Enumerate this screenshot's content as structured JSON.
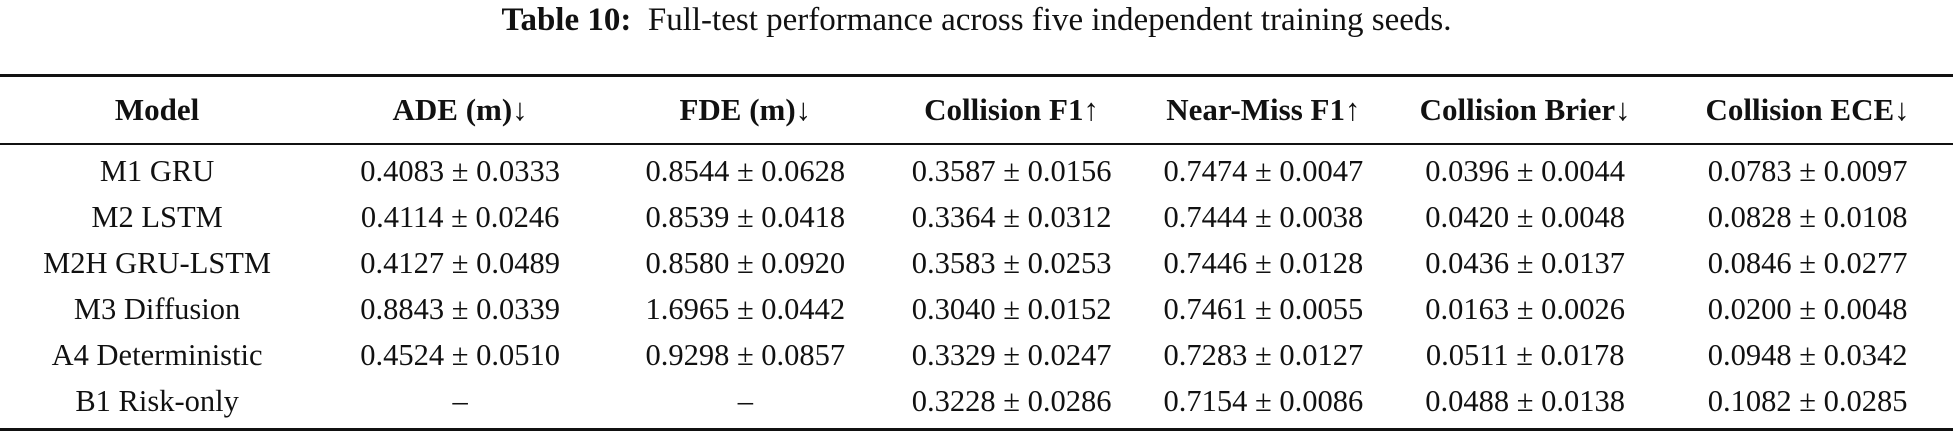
{
  "caption": {
    "label": "Table 10:",
    "text": "Full-test performance across five independent training seeds."
  },
  "table": {
    "headers": [
      "Model",
      "ADE (m)↓",
      "FDE (m)↓",
      "Collision F1↑",
      "Near-Miss F1↑",
      "Collision Brier↓",
      "Collision ECE↓"
    ],
    "rows": [
      [
        "M1 GRU",
        "0.4083 ± 0.0333",
        "0.8544 ± 0.0628",
        "0.3587 ± 0.0156",
        "0.7474 ± 0.0047",
        "0.0396 ± 0.0044",
        "0.0783 ± 0.0097"
      ],
      [
        "M2 LSTM",
        "0.4114 ± 0.0246",
        "0.8539 ± 0.0418",
        "0.3364 ± 0.0312",
        "0.7444 ± 0.0038",
        "0.0420 ± 0.0048",
        "0.0828 ± 0.0108"
      ],
      [
        "M2H GRU-LSTM",
        "0.4127 ± 0.0489",
        "0.8580 ± 0.0920",
        "0.3583 ± 0.0253",
        "0.7446 ± 0.0128",
        "0.0436 ± 0.0137",
        "0.0846 ± 0.0277"
      ],
      [
        "M3 Diffusion",
        "0.8843 ± 0.0339",
        "1.6965 ± 0.0442",
        "0.3040 ± 0.0152",
        "0.7461 ± 0.0055",
        "0.0163 ± 0.0026",
        "0.0200 ± 0.0048"
      ],
      [
        "A4 Deterministic",
        "0.4524 ± 0.0510",
        "0.9298 ± 0.0857",
        "0.3329 ± 0.0247",
        "0.7283 ± 0.0127",
        "0.0511 ± 0.0178",
        "0.0948 ± 0.0342"
      ],
      [
        "B1 Risk-only",
        "–",
        "–",
        "0.3228 ± 0.0286",
        "0.7154 ± 0.0086",
        "0.0488 ± 0.0138",
        "0.1082 ± 0.0285"
      ]
    ]
  }
}
